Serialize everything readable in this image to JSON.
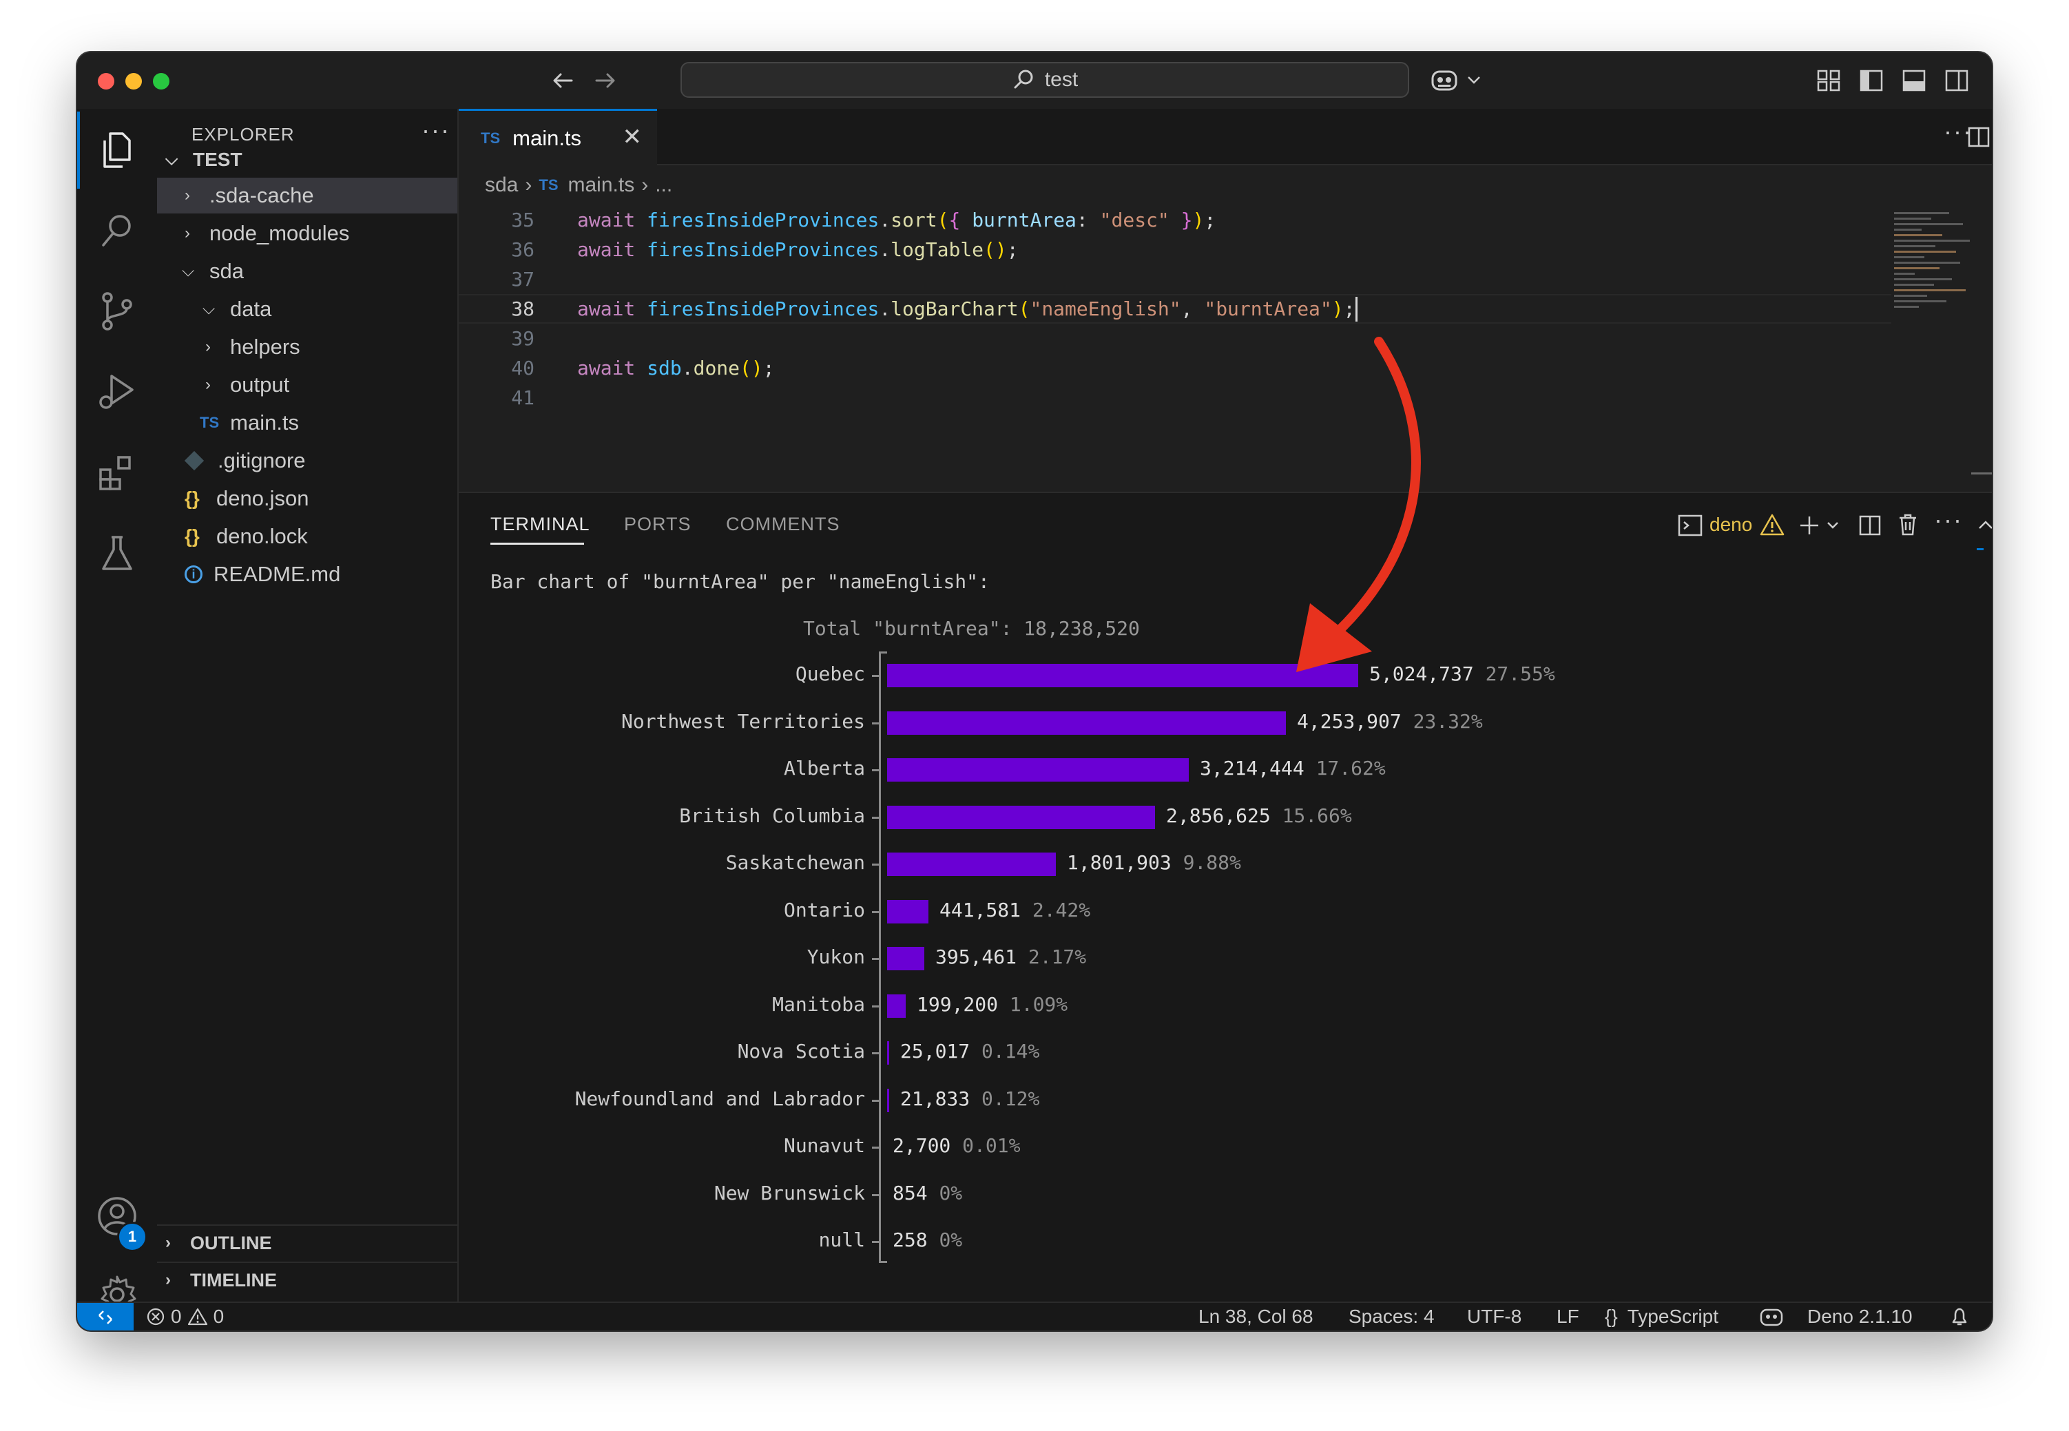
{
  "titlebar": {
    "search_text": "test",
    "back_icon": "arrow-left-icon",
    "forward_icon": "arrow-right-icon"
  },
  "sidebar": {
    "title": "EXPLORER",
    "more": "···",
    "root": "TEST",
    "items": [
      {
        "label": ".sda-cache",
        "kind": "folder",
        "expanded": false,
        "depth": 1
      },
      {
        "label": "node_modules",
        "kind": "folder",
        "expanded": false,
        "depth": 1
      },
      {
        "label": "sda",
        "kind": "folder",
        "expanded": true,
        "depth": 1
      },
      {
        "label": "data",
        "kind": "folder",
        "expanded": true,
        "depth": 2
      },
      {
        "label": "helpers",
        "kind": "folder",
        "expanded": false,
        "depth": 2
      },
      {
        "label": "output",
        "kind": "folder",
        "expanded": false,
        "depth": 2
      },
      {
        "label": "main.ts",
        "kind": "ts",
        "depth": 2
      },
      {
        "label": ".gitignore",
        "kind": "git",
        "depth": 1
      },
      {
        "label": "deno.json",
        "kind": "json",
        "depth": 1
      },
      {
        "label": "deno.lock",
        "kind": "json",
        "depth": 1
      },
      {
        "label": "README.md",
        "kind": "info",
        "depth": 1
      }
    ],
    "outline": "OUTLINE",
    "timeline": "TIMELINE"
  },
  "editor": {
    "tab_label": "main.ts",
    "tab_lang_badge": "TS",
    "breadcrumb": [
      "sda",
      "main.ts",
      "..."
    ],
    "lines": [
      {
        "n": "35"
      },
      {
        "n": "36"
      },
      {
        "n": "37"
      },
      {
        "n": "38"
      },
      {
        "n": "39"
      },
      {
        "n": "40"
      },
      {
        "n": "41"
      }
    ],
    "code": {
      "l35_a": "await ",
      "l35_b": "firesInsideProvinces",
      "l35_c": ".",
      "l35_d": "sort",
      "l35_e": "(",
      "l35_f": "{ ",
      "l35_g": "burntArea",
      "l35_h": ": ",
      "l35_i": "\"desc\"",
      "l35_j": " }",
      "l35_k": ")",
      "l35_l": ";",
      "l36_a": "await ",
      "l36_b": "firesInsideProvinces",
      "l36_c": ".",
      "l36_d": "logTable",
      "l36_e": "()",
      "l36_f": ";",
      "l38_a": "await ",
      "l38_b": "firesInsideProvinces",
      "l38_c": ".",
      "l38_d": "logBarChart",
      "l38_e": "(",
      "l38_f": "\"nameEnglish\"",
      "l38_g": ", ",
      "l38_h": "\"burntArea\"",
      "l38_i": ")",
      "l38_j": ";",
      "l40_a": "await ",
      "l40_b": "sdb",
      "l40_c": ".",
      "l40_d": "done",
      "l40_e": "()",
      "l40_f": ";"
    }
  },
  "panel": {
    "tabs": [
      "TERMINAL",
      "PORTS",
      "COMMENTS"
    ],
    "active_tab": "TERMINAL",
    "terminal_name": "deno",
    "terminal_output": {
      "heading": "Bar chart of \"burntArea\" per \"nameEnglish\":",
      "total": "Total \"burntArea\": 18,238,520"
    }
  },
  "chart_data": {
    "type": "bar",
    "orientation": "horizontal",
    "title": "Bar chart of \"burntArea\" per \"nameEnglish\":",
    "subtitle": "Total \"burntArea\": 18,238,520",
    "categories": [
      "Quebec",
      "Northwest Territories",
      "Alberta",
      "British Columbia",
      "Saskatchewan",
      "Ontario",
      "Yukon",
      "Manitoba",
      "Nova Scotia",
      "Newfoundland and Labrador",
      "Nunavut",
      "New Brunswick",
      "null"
    ],
    "values": [
      5024737,
      4253907,
      3214444,
      2856625,
      1801903,
      441581,
      395461,
      199200,
      25017,
      21833,
      2700,
      854,
      258
    ],
    "value_labels": [
      "5,024,737",
      "4,253,907",
      "3,214,444",
      "2,856,625",
      "1,801,903",
      "441,581",
      "395,461",
      "199,200",
      "25,017",
      "21,833",
      "2,700",
      "854",
      "258"
    ],
    "percent_labels": [
      "27.55%",
      "23.32%",
      "17.62%",
      "15.66%",
      "9.88%",
      "2.42%",
      "2.17%",
      "1.09%",
      "0.14%",
      "0.12%",
      "0.01%",
      "0%",
      "0%"
    ],
    "bar_color": "#6a00d4"
  },
  "statusbar": {
    "errors": "0",
    "warnings": "0",
    "position": "Ln 38, Col 68",
    "spaces": "Spaces: 4",
    "encoding": "UTF-8",
    "eol": "LF",
    "language": "TypeScript",
    "runtime": "Deno 2.1.10"
  },
  "activitybar": {
    "account_badge": "1"
  },
  "colors": {
    "accent": "#0078d4",
    "bar": "#6a00d4",
    "annotation_arrow": "#e8321e"
  }
}
